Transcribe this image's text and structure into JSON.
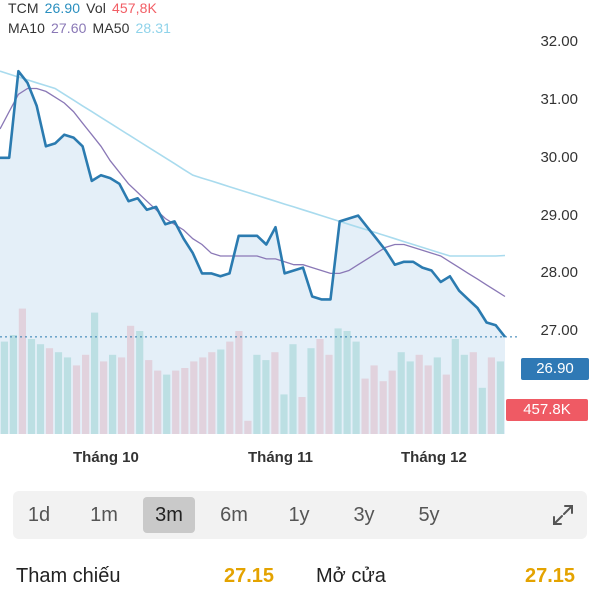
{
  "legend": {
    "symbol": "TCM",
    "price": "26.90",
    "vol_label": "Vol",
    "vol_value": "457,8K",
    "ma10_label": "MA10",
    "ma10_value": "27.60",
    "ma50_label": "MA50",
    "ma50_value": "28.31"
  },
  "badges": {
    "price": "26.90",
    "volume": "457.8K"
  },
  "months": [
    "Tháng 10",
    "Tháng 11",
    "Tháng 12"
  ],
  "tabs": [
    "1d",
    "1m",
    "3m",
    "6m",
    "1y",
    "3y",
    "5y"
  ],
  "active_tab": "3m",
  "info": {
    "ref_label": "Tham chiếu",
    "ref_value": "27.15",
    "open_label": "Mở cửa",
    "open_value": "27.15"
  },
  "colors": {
    "price_line": "#2b7bb0",
    "area_fill": "#dbe9f5",
    "ma10": "#8a78b6",
    "ma50": "#a9dbee",
    "vol_up": "#5fbfad",
    "vol_down": "#f28b92"
  },
  "chart_data": {
    "type": "line",
    "y_ticks": [
      "32.00",
      "31.00",
      "30.00",
      "29.00",
      "28.00",
      "27.00"
    ],
    "ylim": [
      26.5,
      32.3
    ],
    "x_labels": [
      "Tháng 10",
      "Tháng 11",
      "Tháng 12"
    ],
    "series": [
      {
        "values": [
          30.0,
          30.0,
          31.5,
          31.3,
          30.9,
          30.2,
          30.25,
          30.4,
          30.35,
          30.2,
          29.6,
          29.7,
          29.65,
          29.55,
          29.25,
          29.3,
          29.1,
          29.15,
          28.85,
          28.9,
          28.6,
          28.35,
          28.0,
          28.0,
          27.95,
          28.0,
          28.65,
          28.65,
          28.65,
          28.5,
          28.8,
          28.0,
          28.05,
          28.1,
          27.6,
          27.55,
          27.55,
          28.9,
          28.95,
          29.0,
          28.8,
          28.6,
          28.4,
          28.15,
          28.2,
          28.2,
          28.1,
          28.05,
          27.85,
          27.95,
          27.7,
          27.55,
          27.4,
          27.15,
          27.1,
          26.9
        ]
      },
      {
        "values": [
          30.5,
          30.8,
          31.1,
          31.2,
          31.2,
          31.15,
          31.05,
          30.95,
          30.8,
          30.6,
          30.4,
          30.2,
          29.95,
          29.75,
          29.55,
          29.4,
          29.25,
          29.1,
          28.95,
          28.85,
          28.75,
          28.6,
          28.5,
          28.35,
          28.3,
          28.3,
          28.3,
          28.3,
          28.3,
          28.25,
          28.25,
          28.2,
          28.15,
          28.15,
          28.1,
          28.05,
          28.0,
          28.0,
          28.05,
          28.15,
          28.25,
          28.35,
          28.45,
          28.5,
          28.5,
          28.45,
          28.4,
          28.35,
          28.3,
          28.2,
          28.1,
          28.0,
          27.9,
          27.8,
          27.7,
          27.6
        ]
      },
      {
        "values": [
          31.5,
          31.45,
          31.4,
          31.35,
          31.3,
          31.25,
          31.2,
          31.1,
          31.0,
          30.9,
          30.8,
          30.7,
          30.6,
          30.5,
          30.4,
          30.3,
          30.2,
          30.1,
          30.0,
          29.9,
          29.8,
          29.7,
          29.65,
          29.6,
          29.55,
          29.5,
          29.45,
          29.4,
          29.35,
          29.3,
          29.25,
          29.2,
          29.15,
          29.1,
          29.05,
          29.0,
          28.95,
          28.9,
          28.85,
          28.8,
          28.75,
          28.7,
          28.65,
          28.6,
          28.55,
          28.5,
          28.45,
          28.4,
          28.35,
          28.3,
          28.3,
          28.3,
          28.3,
          28.3,
          28.3,
          28.31
        ]
      }
    ],
    "volume": {
      "ylim": [
        0,
        1
      ],
      "values": [
        0.7,
        0.75,
        0.95,
        0.72,
        0.68,
        0.65,
        0.62,
        0.58,
        0.52,
        0.6,
        0.92,
        0.55,
        0.6,
        0.58,
        0.82,
        0.78,
        0.56,
        0.48,
        0.45,
        0.48,
        0.5,
        0.55,
        0.58,
        0.62,
        0.64,
        0.7,
        0.78,
        0.1,
        0.6,
        0.56,
        0.62,
        0.3,
        0.68,
        0.28,
        0.65,
        0.72,
        0.6,
        0.8,
        0.78,
        0.7,
        0.42,
        0.52,
        0.4,
        0.48,
        0.62,
        0.55,
        0.6,
        0.52,
        0.58,
        0.45,
        0.72,
        0.6,
        0.62,
        0.35,
        0.58,
        0.55
      ],
      "up": [
        true,
        true,
        false,
        true,
        true,
        false,
        true,
        true,
        false,
        false,
        true,
        false,
        true,
        false,
        false,
        true,
        false,
        false,
        true,
        false,
        false,
        false,
        false,
        false,
        true,
        false,
        false,
        false,
        true,
        true,
        false,
        true,
        true,
        false,
        true,
        false,
        false,
        true,
        true,
        true,
        false,
        false,
        false,
        false,
        true,
        true,
        false,
        false,
        true,
        false,
        true,
        true,
        false,
        true,
        false,
        true
      ]
    }
  }
}
